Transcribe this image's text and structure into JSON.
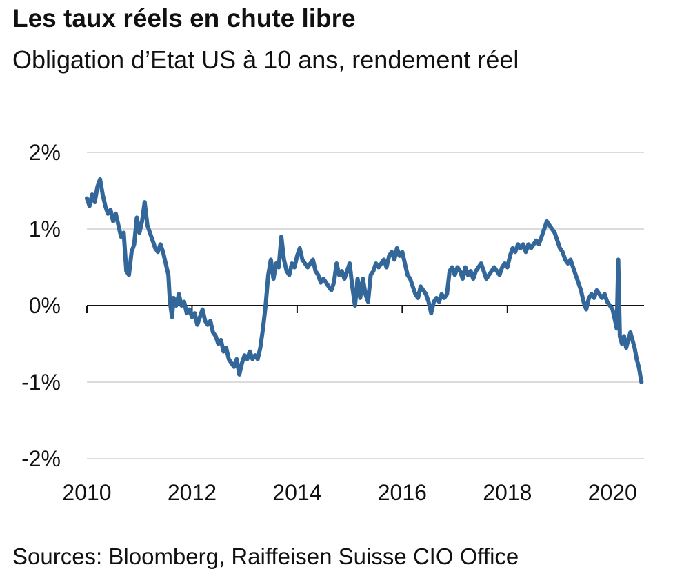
{
  "header": {
    "title": "Les taux réels en chute libre",
    "subtitle": "Obligation d’Etat US à 10 ans, rendement réel"
  },
  "footer": {
    "source": "Sources: Bloomberg, Raiffeisen Suisse CIO Office"
  },
  "chart_data": {
    "type": "line",
    "title": "Les taux réels en chute libre",
    "subtitle": "Obligation d’Etat US à 10 ans, rendement réel",
    "xlabel": "",
    "ylabel": "",
    "xlim": [
      2010,
      2020.6
    ],
    "ylim": [
      -2,
      2
    ],
    "grid": true,
    "legend": "none",
    "color": "#336699",
    "yticks": [
      {
        "value": 2,
        "label": "2%"
      },
      {
        "value": 1,
        "label": "1%"
      },
      {
        "value": 0,
        "label": "0%"
      },
      {
        "value": -1,
        "label": "-1%"
      },
      {
        "value": -2,
        "label": "-2%"
      }
    ],
    "xticks": [
      {
        "value": 2010,
        "label": "2010"
      },
      {
        "value": 2012,
        "label": "2012"
      },
      {
        "value": 2014,
        "label": "2014"
      },
      {
        "value": 2016,
        "label": "2016"
      },
      {
        "value": 2018,
        "label": "2018"
      },
      {
        "value": 2020,
        "label": "2020"
      }
    ],
    "series": [
      {
        "values": [
          [
            2010.0,
            1.4
          ],
          [
            2010.05,
            1.3
          ],
          [
            2010.1,
            1.45
          ],
          [
            2010.15,
            1.35
          ],
          [
            2010.2,
            1.55
          ],
          [
            2010.25,
            1.65
          ],
          [
            2010.3,
            1.45
          ],
          [
            2010.35,
            1.3
          ],
          [
            2010.4,
            1.2
          ],
          [
            2010.45,
            1.25
          ],
          [
            2010.5,
            1.1
          ],
          [
            2010.55,
            1.2
          ],
          [
            2010.6,
            1.05
          ],
          [
            2010.65,
            0.9
          ],
          [
            2010.7,
            0.95
          ],
          [
            2010.75,
            0.45
          ],
          [
            2010.8,
            0.4
          ],
          [
            2010.85,
            0.7
          ],
          [
            2010.9,
            0.8
          ],
          [
            2010.95,
            1.15
          ],
          [
            2011.0,
            0.95
          ],
          [
            2011.05,
            1.1
          ],
          [
            2011.1,
            1.35
          ],
          [
            2011.15,
            1.05
          ],
          [
            2011.2,
            0.95
          ],
          [
            2011.25,
            0.85
          ],
          [
            2011.3,
            0.75
          ],
          [
            2011.35,
            0.7
          ],
          [
            2011.4,
            0.8
          ],
          [
            2011.45,
            0.7
          ],
          [
            2011.5,
            0.55
          ],
          [
            2011.55,
            0.4
          ],
          [
            2011.58,
            0.05
          ],
          [
            2011.62,
            -0.15
          ],
          [
            2011.65,
            0.1
          ],
          [
            2011.7,
            0.0
          ],
          [
            2011.75,
            0.15
          ],
          [
            2011.8,
            0.0
          ],
          [
            2011.85,
            0.05
          ],
          [
            2011.9,
            -0.1
          ],
          [
            2011.95,
            -0.05
          ],
          [
            2012.0,
            -0.15
          ],
          [
            2012.05,
            -0.1
          ],
          [
            2012.1,
            -0.25
          ],
          [
            2012.15,
            -0.15
          ],
          [
            2012.2,
            -0.05
          ],
          [
            2012.25,
            -0.2
          ],
          [
            2012.3,
            -0.25
          ],
          [
            2012.35,
            -0.2
          ],
          [
            2012.4,
            -0.35
          ],
          [
            2012.45,
            -0.4
          ],
          [
            2012.5,
            -0.5
          ],
          [
            2012.55,
            -0.45
          ],
          [
            2012.6,
            -0.6
          ],
          [
            2012.65,
            -0.55
          ],
          [
            2012.7,
            -0.7
          ],
          [
            2012.75,
            -0.75
          ],
          [
            2012.8,
            -0.8
          ],
          [
            2012.85,
            -0.7
          ],
          [
            2012.9,
            -0.9
          ],
          [
            2012.95,
            -0.75
          ],
          [
            2013.0,
            -0.65
          ],
          [
            2013.05,
            -0.7
          ],
          [
            2013.1,
            -0.6
          ],
          [
            2013.15,
            -0.7
          ],
          [
            2013.2,
            -0.65
          ],
          [
            2013.25,
            -0.7
          ],
          [
            2013.3,
            -0.55
          ],
          [
            2013.35,
            -0.3
          ],
          [
            2013.4,
            0.0
          ],
          [
            2013.45,
            0.4
          ],
          [
            2013.5,
            0.6
          ],
          [
            2013.55,
            0.35
          ],
          [
            2013.6,
            0.55
          ],
          [
            2013.65,
            0.5
          ],
          [
            2013.7,
            0.9
          ],
          [
            2013.75,
            0.6
          ],
          [
            2013.8,
            0.45
          ],
          [
            2013.85,
            0.4
          ],
          [
            2013.9,
            0.55
          ],
          [
            2013.95,
            0.5
          ],
          [
            2014.0,
            0.65
          ],
          [
            2014.05,
            0.75
          ],
          [
            2014.1,
            0.6
          ],
          [
            2014.15,
            0.55
          ],
          [
            2014.2,
            0.5
          ],
          [
            2014.25,
            0.55
          ],
          [
            2014.3,
            0.6
          ],
          [
            2014.35,
            0.45
          ],
          [
            2014.4,
            0.4
          ],
          [
            2014.45,
            0.3
          ],
          [
            2014.5,
            0.35
          ],
          [
            2014.55,
            0.3
          ],
          [
            2014.6,
            0.25
          ],
          [
            2014.65,
            0.2
          ],
          [
            2014.7,
            0.3
          ],
          [
            2014.75,
            0.55
          ],
          [
            2014.8,
            0.4
          ],
          [
            2014.85,
            0.45
          ],
          [
            2014.9,
            0.35
          ],
          [
            2014.95,
            0.45
          ],
          [
            2015.0,
            0.55
          ],
          [
            2015.05,
            0.25
          ],
          [
            2015.1,
            0.0
          ],
          [
            2015.15,
            0.35
          ],
          [
            2015.2,
            0.1
          ],
          [
            2015.25,
            0.35
          ],
          [
            2015.3,
            0.15
          ],
          [
            2015.35,
            0.05
          ],
          [
            2015.4,
            0.4
          ],
          [
            2015.45,
            0.45
          ],
          [
            2015.5,
            0.55
          ],
          [
            2015.55,
            0.5
          ],
          [
            2015.6,
            0.55
          ],
          [
            2015.65,
            0.6
          ],
          [
            2015.7,
            0.5
          ],
          [
            2015.75,
            0.65
          ],
          [
            2015.8,
            0.7
          ],
          [
            2015.85,
            0.6
          ],
          [
            2015.9,
            0.75
          ],
          [
            2015.95,
            0.65
          ],
          [
            2016.0,
            0.7
          ],
          [
            2016.05,
            0.55
          ],
          [
            2016.1,
            0.4
          ],
          [
            2016.15,
            0.35
          ],
          [
            2016.2,
            0.25
          ],
          [
            2016.25,
            0.15
          ],
          [
            2016.3,
            0.1
          ],
          [
            2016.35,
            0.25
          ],
          [
            2016.4,
            0.2
          ],
          [
            2016.45,
            0.15
          ],
          [
            2016.5,
            0.05
          ],
          [
            2016.55,
            -0.1
          ],
          [
            2016.6,
            0.05
          ],
          [
            2016.65,
            0.1
          ],
          [
            2016.7,
            0.05
          ],
          [
            2016.75,
            0.15
          ],
          [
            2016.8,
            0.1
          ],
          [
            2016.85,
            0.15
          ],
          [
            2016.9,
            0.45
          ],
          [
            2016.95,
            0.5
          ],
          [
            2017.0,
            0.4
          ],
          [
            2017.05,
            0.5
          ],
          [
            2017.1,
            0.45
          ],
          [
            2017.15,
            0.35
          ],
          [
            2017.2,
            0.5
          ],
          [
            2017.25,
            0.4
          ],
          [
            2017.3,
            0.45
          ],
          [
            2017.35,
            0.35
          ],
          [
            2017.4,
            0.45
          ],
          [
            2017.45,
            0.5
          ],
          [
            2017.5,
            0.55
          ],
          [
            2017.55,
            0.45
          ],
          [
            2017.6,
            0.35
          ],
          [
            2017.65,
            0.4
          ],
          [
            2017.7,
            0.45
          ],
          [
            2017.75,
            0.5
          ],
          [
            2017.8,
            0.45
          ],
          [
            2017.85,
            0.4
          ],
          [
            2017.9,
            0.5
          ],
          [
            2017.95,
            0.55
          ],
          [
            2018.0,
            0.5
          ],
          [
            2018.05,
            0.65
          ],
          [
            2018.1,
            0.75
          ],
          [
            2018.15,
            0.7
          ],
          [
            2018.2,
            0.8
          ],
          [
            2018.25,
            0.75
          ],
          [
            2018.3,
            0.8
          ],
          [
            2018.35,
            0.7
          ],
          [
            2018.4,
            0.8
          ],
          [
            2018.45,
            0.75
          ],
          [
            2018.5,
            0.8
          ],
          [
            2018.55,
            0.85
          ],
          [
            2018.6,
            0.8
          ],
          [
            2018.65,
            0.9
          ],
          [
            2018.7,
            1.0
          ],
          [
            2018.75,
            1.1
          ],
          [
            2018.8,
            1.05
          ],
          [
            2018.85,
            1.0
          ],
          [
            2018.9,
            0.95
          ],
          [
            2018.95,
            0.85
          ],
          [
            2019.0,
            0.75
          ],
          [
            2019.05,
            0.7
          ],
          [
            2019.1,
            0.6
          ],
          [
            2019.15,
            0.55
          ],
          [
            2019.2,
            0.6
          ],
          [
            2019.25,
            0.5
          ],
          [
            2019.3,
            0.4
          ],
          [
            2019.35,
            0.3
          ],
          [
            2019.4,
            0.2
          ],
          [
            2019.45,
            0.05
          ],
          [
            2019.5,
            -0.05
          ],
          [
            2019.55,
            0.1
          ],
          [
            2019.6,
            0.15
          ],
          [
            2019.65,
            0.1
          ],
          [
            2019.7,
            0.2
          ],
          [
            2019.75,
            0.15
          ],
          [
            2019.8,
            0.1
          ],
          [
            2019.85,
            0.15
          ],
          [
            2019.9,
            0.05
          ],
          [
            2019.95,
            0.0
          ],
          [
            2020.0,
            -0.05
          ],
          [
            2020.05,
            -0.2
          ],
          [
            2020.08,
            -0.3
          ],
          [
            2020.11,
            0.6
          ],
          [
            2020.14,
            -0.4
          ],
          [
            2020.18,
            -0.5
          ],
          [
            2020.22,
            -0.4
          ],
          [
            2020.26,
            -0.55
          ],
          [
            2020.3,
            -0.45
          ],
          [
            2020.34,
            -0.35
          ],
          [
            2020.38,
            -0.45
          ],
          [
            2020.42,
            -0.55
          ],
          [
            2020.46,
            -0.7
          ],
          [
            2020.5,
            -0.8
          ],
          [
            2020.55,
            -1.0
          ]
        ]
      }
    ]
  }
}
